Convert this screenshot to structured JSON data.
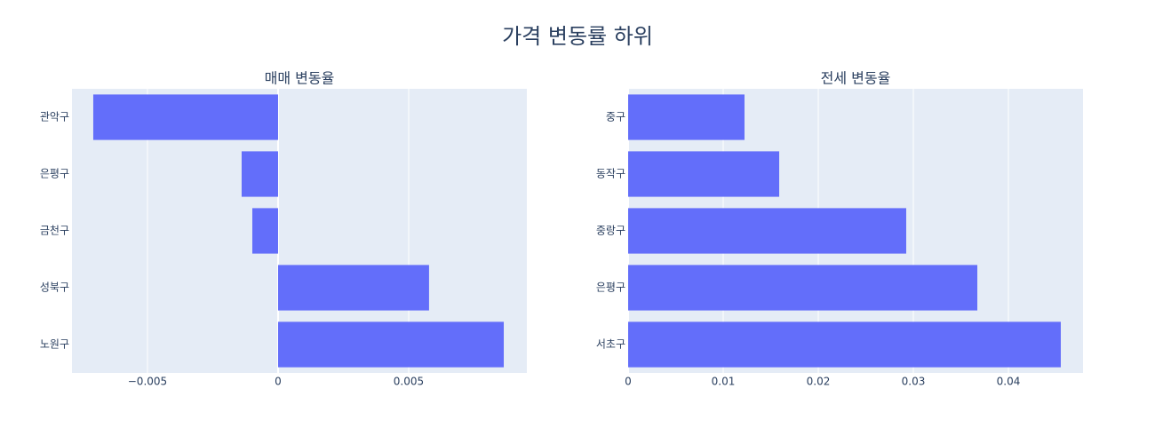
{
  "title": "가격 변동률 하위",
  "chart_data": [
    {
      "type": "bar",
      "orientation": "horizontal",
      "title": "매매 변동율",
      "categories": [
        "관악구",
        "은평구",
        "금천구",
        "성북구",
        "노원구"
      ],
      "values": [
        -0.007075,
        -0.001395,
        -0.000986,
        0.00578,
        0.00864
      ],
      "color": "#636efa",
      "xlim": [
        -0.00789,
        0.009524
      ],
      "xticks": [
        {
          "value": -0.005,
          "label": "−0.005"
        },
        0,
        0.005
      ],
      "grid": true
    },
    {
      "type": "bar",
      "orientation": "horizontal",
      "title": "전세 변동율",
      "categories": [
        "중구",
        "동작구",
        "중랑구",
        "은평구",
        "서초구"
      ],
      "values": [
        0.01224,
        0.01589,
        0.02925,
        0.03673,
        0.04551
      ],
      "color": "#636efa",
      "xlim": [
        0,
        0.04785
      ],
      "xticks": [
        0,
        0.01,
        0.02,
        0.03,
        0.04
      ],
      "grid": true
    }
  ]
}
